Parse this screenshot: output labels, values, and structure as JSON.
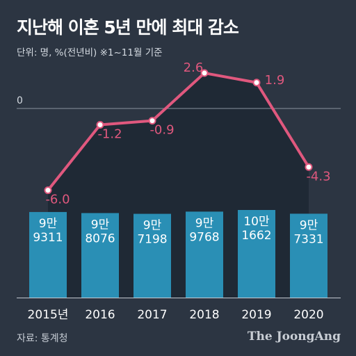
{
  "title": "지난해 이혼 5년 만에 최대 감소",
  "unit_note": "단위: 명, %(전년비)    ※1~11월 기준",
  "source": "자료: 통계청",
  "brand": "The JoongAng",
  "colors": {
    "background": "#2c3542",
    "area": "#1f2935",
    "bar": "#2a8fb5",
    "line": "#e0587e"
  },
  "chart_data": [
    {
      "type": "bar",
      "categories": [
        "2015년",
        "2016",
        "2017",
        "2018",
        "2019",
        "2020"
      ],
      "values": [
        99311,
        98076,
        97198,
        99768,
        101662,
        97331
      ],
      "value_labels": [
        [
          "9만",
          "9311"
        ],
        [
          "9만",
          "8076"
        ],
        [
          "9만",
          "7198"
        ],
        [
          "9만",
          "9768"
        ],
        [
          "10만",
          "1662"
        ],
        [
          "9만",
          "7331"
        ]
      ]
    },
    {
      "type": "line",
      "categories": [
        "2015년",
        "2016",
        "2017",
        "2018",
        "2019",
        "2020"
      ],
      "values": [
        -6.0,
        -1.2,
        -0.9,
        2.6,
        1.9,
        -4.3
      ],
      "value_labels": [
        "-6.0",
        "-1.2",
        "-0.9",
        "2.6",
        "1.9",
        "-4.3"
      ],
      "zero_label": "0"
    }
  ]
}
